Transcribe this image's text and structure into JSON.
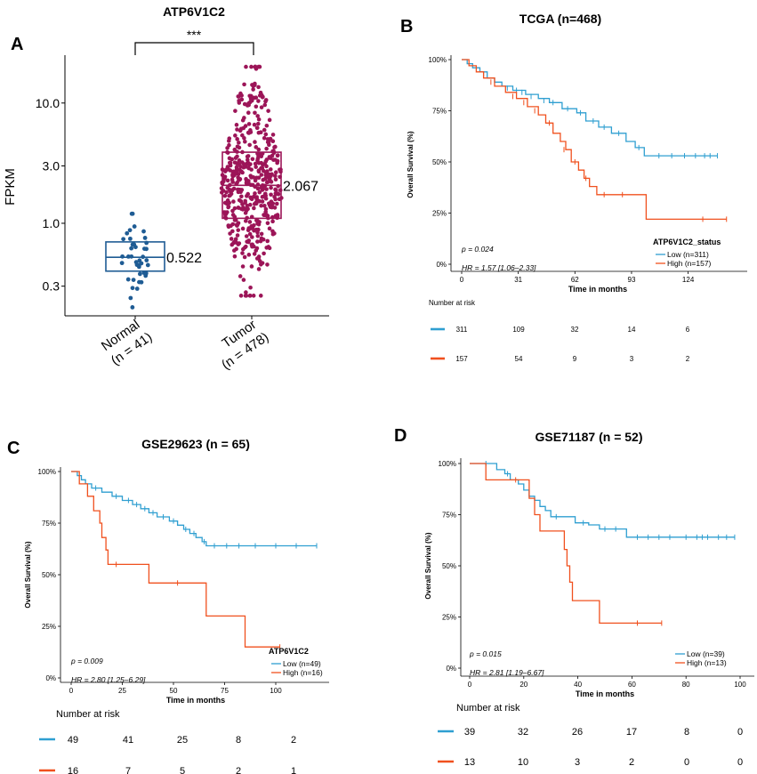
{
  "colors": {
    "low": "#2f9fd1",
    "high": "#f0501e",
    "normal": "#1f5c94",
    "tumor": "#9c1558",
    "axis": "#000000"
  },
  "panels": [
    {
      "letter": "A",
      "chart_data": {
        "type": "scatter",
        "title": "ATP6V1C2",
        "ylabel": "FPKM",
        "yscale": "log",
        "ylim": [
          0.17,
          25
        ],
        "yticks": [
          0.3,
          1.0,
          3.0,
          10.0
        ],
        "ytick_labels": [
          "0.3",
          "1.0",
          "3.0",
          "10.0"
        ],
        "significance": "***",
        "groups": [
          {
            "name": "Normal",
            "n_label": "(n = 41)",
            "count": 41,
            "median": 0.522,
            "median_label": "0.522",
            "q1": 0.4,
            "q3": 0.7,
            "min": 0.2,
            "max": 1.2
          },
          {
            "name": "Tumor",
            "n_label": "(n = 478)",
            "count": 478,
            "median": 2.067,
            "median_label": "2.067",
            "q1": 1.1,
            "q3": 3.9,
            "min": 0.25,
            "max": 20
          }
        ]
      }
    },
    {
      "letter": "B",
      "chart_data": {
        "type": "line",
        "title": "TCGA (n=468)",
        "ylabel": "Overall Survival (%)",
        "xlabel": "Time in months",
        "xlim": [
          0,
          150
        ],
        "ylim": [
          0,
          1
        ],
        "xticks": [
          0,
          31,
          62,
          93,
          124
        ],
        "yticks": [
          0,
          0.25,
          0.5,
          0.75,
          1.0
        ],
        "ytick_labels": [
          "0%",
          "25%",
          "50%",
          "75%",
          "100%"
        ],
        "pvalue": "p = 0.024",
        "hr": "HR = 1.57 [1.06–2.33]",
        "legend_title": "ATP6V1C2_status",
        "series": [
          {
            "name": "Low (n=311)",
            "key": "low",
            "steps": [
              [
                0,
                1.0
              ],
              [
                3,
                0.98
              ],
              [
                6,
                0.96
              ],
              [
                10,
                0.94
              ],
              [
                14,
                0.91
              ],
              [
                18,
                0.89
              ],
              [
                22,
                0.87
              ],
              [
                28,
                0.85
              ],
              [
                35,
                0.83
              ],
              [
                42,
                0.81
              ],
              [
                48,
                0.79
              ],
              [
                55,
                0.76
              ],
              [
                63,
                0.74
              ],
              [
                68,
                0.7
              ],
              [
                75,
                0.67
              ],
              [
                82,
                0.64
              ],
              [
                90,
                0.6
              ],
              [
                95,
                0.57
              ],
              [
                100,
                0.53
              ],
              [
                140,
                0.53
              ]
            ],
            "censors": [
              [
                12,
                0.93
              ],
              [
                25,
                0.86
              ],
              [
                30,
                0.85
              ],
              [
                33,
                0.84
              ],
              [
                38,
                0.82
              ],
              [
                45,
                0.8
              ],
              [
                50,
                0.79
              ],
              [
                58,
                0.76
              ],
              [
                65,
                0.74
              ],
              [
                72,
                0.7
              ],
              [
                78,
                0.67
              ],
              [
                86,
                0.64
              ],
              [
                97,
                0.57
              ],
              [
                108,
                0.53
              ],
              [
                115,
                0.53
              ],
              [
                122,
                0.53
              ],
              [
                128,
                0.53
              ],
              [
                133,
                0.53
              ],
              [
                136,
                0.53
              ],
              [
                140,
                0.53
              ]
            ]
          },
          {
            "name": "High (n=157)",
            "key": "high",
            "steps": [
              [
                0,
                1.0
              ],
              [
                4,
                0.97
              ],
              [
                8,
                0.94
              ],
              [
                12,
                0.91
              ],
              [
                18,
                0.87
              ],
              [
                24,
                0.84
              ],
              [
                30,
                0.81
              ],
              [
                36,
                0.77
              ],
              [
                42,
                0.73
              ],
              [
                46,
                0.69
              ],
              [
                50,
                0.64
              ],
              [
                54,
                0.6
              ],
              [
                57,
                0.56
              ],
              [
                60,
                0.5
              ],
              [
                64,
                0.46
              ],
              [
                67,
                0.42
              ],
              [
                70,
                0.38
              ],
              [
                74,
                0.34
              ],
              [
                100,
                0.34
              ],
              [
                101,
                0.22
              ],
              [
                145,
                0.22
              ]
            ],
            "censors": [
              [
                16,
                0.89
              ],
              [
                28,
                0.82
              ],
              [
                34,
                0.79
              ],
              [
                40,
                0.75
              ],
              [
                48,
                0.69
              ],
              [
                56,
                0.56
              ],
              [
                62,
                0.5
              ],
              [
                68,
                0.42
              ],
              [
                78,
                0.34
              ],
              [
                88,
                0.34
              ],
              [
                132,
                0.22
              ],
              [
                145,
                0.22
              ]
            ]
          }
        ],
        "risk_table": {
          "title": "Number at risk",
          "rows": [
            {
              "key": "low",
              "values": [
                "311",
                "109",
                "32",
                "14",
                "6"
              ]
            },
            {
              "key": "high",
              "values": [
                "157",
                "54",
                "9",
                "3",
                "2"
              ]
            }
          ]
        }
      }
    },
    {
      "letter": "C",
      "chart_data": {
        "type": "line",
        "title": "GSE29623  (n = 65)",
        "ylabel": "Overall Survival (%)",
        "xlabel": "Time in months",
        "xlim": [
          0,
          120
        ],
        "ylim": [
          0,
          1
        ],
        "xticks": [
          0,
          25,
          50,
          75,
          100
        ],
        "yticks": [
          0,
          0.25,
          0.5,
          0.75,
          1.0
        ],
        "ytick_labels": [
          "0%",
          "25%",
          "50%",
          "75%",
          "100%"
        ],
        "pvalue": "p = 0.009",
        "hr": "HR = 2.80 [1.25–6.29]",
        "legend_title": "ATP6V1C2",
        "series": [
          {
            "name": "Low (n=49)",
            "key": "low",
            "steps": [
              [
                0,
                1.0
              ],
              [
                3,
                0.98
              ],
              [
                5,
                0.96
              ],
              [
                7,
                0.94
              ],
              [
                10,
                0.92
              ],
              [
                15,
                0.9
              ],
              [
                20,
                0.88
              ],
              [
                25,
                0.86
              ],
              [
                30,
                0.84
              ],
              [
                34,
                0.82
              ],
              [
                38,
                0.8
              ],
              [
                42,
                0.78
              ],
              [
                48,
                0.76
              ],
              [
                52,
                0.74
              ],
              [
                55,
                0.72
              ],
              [
                58,
                0.7
              ],
              [
                61,
                0.68
              ],
              [
                64,
                0.66
              ],
              [
                66,
                0.64
              ],
              [
                120,
                0.64
              ]
            ],
            "censors": [
              [
                12,
                0.92
              ],
              [
                22,
                0.88
              ],
              [
                28,
                0.86
              ],
              [
                32,
                0.84
              ],
              [
                36,
                0.82
              ],
              [
                40,
                0.8
              ],
              [
                45,
                0.78
              ],
              [
                50,
                0.76
              ],
              [
                56,
                0.72
              ],
              [
                60,
                0.7
              ],
              [
                65,
                0.66
              ],
              [
                70,
                0.64
              ],
              [
                76,
                0.64
              ],
              [
                82,
                0.64
              ],
              [
                90,
                0.64
              ],
              [
                100,
                0.64
              ],
              [
                110,
                0.64
              ],
              [
                120,
                0.64
              ]
            ]
          },
          {
            "name": "High (n=16)",
            "key": "high",
            "steps": [
              [
                0,
                1.0
              ],
              [
                4,
                0.94
              ],
              [
                8,
                0.88
              ],
              [
                11,
                0.81
              ],
              [
                14,
                0.75
              ],
              [
                15,
                0.68
              ],
              [
                17,
                0.62
              ],
              [
                18,
                0.55
              ],
              [
                38,
                0.46
              ],
              [
                66,
                0.3
              ],
              [
                85,
                0.15
              ],
              [
                102,
                0.15
              ]
            ],
            "censors": [
              [
                22,
                0.55
              ],
              [
                52,
                0.46
              ],
              [
                102,
                0.15
              ]
            ]
          }
        ],
        "risk_table": {
          "title": "Number at risk",
          "rows": [
            {
              "key": "low",
              "values": [
                "49",
                "41",
                "25",
                "8",
                "2"
              ]
            },
            {
              "key": "high",
              "values": [
                "16",
                "7",
                "5",
                "2",
                "1"
              ]
            }
          ]
        }
      }
    },
    {
      "letter": "D",
      "chart_data": {
        "type": "line",
        "title": "GSE71187 (n = 52)",
        "ylabel": "Overall Survival (%)",
        "xlabel": "Time in months",
        "xlim": [
          0,
          100
        ],
        "ylim": [
          0,
          1
        ],
        "xticks": [
          0,
          20,
          40,
          60,
          80,
          100
        ],
        "yticks": [
          0,
          0.25,
          0.5,
          0.75,
          1.0
        ],
        "ytick_labels": [
          "0%",
          "25%",
          "50%",
          "75%",
          "100%"
        ],
        "pvalue": "p = 0.015",
        "hr": "HR = 2.81 [1.19–6.67]",
        "legend_title": "",
        "series": [
          {
            "name": "Low (n=39)",
            "key": "low",
            "steps": [
              [
                0,
                1.0
              ],
              [
                10,
                0.97
              ],
              [
                13,
                0.95
              ],
              [
                15,
                0.92
              ],
              [
                18,
                0.9
              ],
              [
                20,
                0.87
              ],
              [
                22,
                0.84
              ],
              [
                24,
                0.82
              ],
              [
                26,
                0.79
              ],
              [
                28,
                0.77
              ],
              [
                30,
                0.74
              ],
              [
                36,
                0.74
              ],
              [
                39,
                0.71
              ],
              [
                44,
                0.7
              ],
              [
                48,
                0.68
              ],
              [
                56,
                0.68
              ],
              [
                58,
                0.64
              ],
              [
                98,
                0.64
              ]
            ],
            "censors": [
              [
                6,
                1.0
              ],
              [
                14,
                0.95
              ],
              [
                32,
                0.74
              ],
              [
                42,
                0.71
              ],
              [
                50,
                0.68
              ],
              [
                54,
                0.68
              ],
              [
                62,
                0.64
              ],
              [
                66,
                0.64
              ],
              [
                70,
                0.64
              ],
              [
                74,
                0.64
              ],
              [
                80,
                0.64
              ],
              [
                84,
                0.64
              ],
              [
                86,
                0.64
              ],
              [
                88,
                0.64
              ],
              [
                92,
                0.64
              ],
              [
                95,
                0.64
              ],
              [
                98,
                0.64
              ]
            ]
          },
          {
            "name": "High (n=13)",
            "key": "high",
            "steps": [
              [
                0,
                1.0
              ],
              [
                5,
                1.0
              ],
              [
                6,
                0.92
              ],
              [
                19,
                0.92
              ],
              [
                22,
                0.83
              ],
              [
                24,
                0.75
              ],
              [
                26,
                0.67
              ],
              [
                34,
                0.67
              ],
              [
                35,
                0.58
              ],
              [
                36,
                0.5
              ],
              [
                37,
                0.42
              ],
              [
                38,
                0.33
              ],
              [
                47,
                0.33
              ],
              [
                48,
                0.22
              ],
              [
                71,
                0.22
              ]
            ],
            "censors": [
              [
                17,
                0.92
              ],
              [
                62,
                0.22
              ],
              [
                71,
                0.22
              ]
            ]
          }
        ],
        "risk_table": {
          "title": "Number at risk",
          "rows": [
            {
              "key": "low",
              "values": [
                "39",
                "32",
                "26",
                "17",
                "8",
                "0"
              ]
            },
            {
              "key": "high",
              "values": [
                "13",
                "10",
                "3",
                "2",
                "0",
                "0"
              ]
            }
          ]
        }
      }
    }
  ]
}
